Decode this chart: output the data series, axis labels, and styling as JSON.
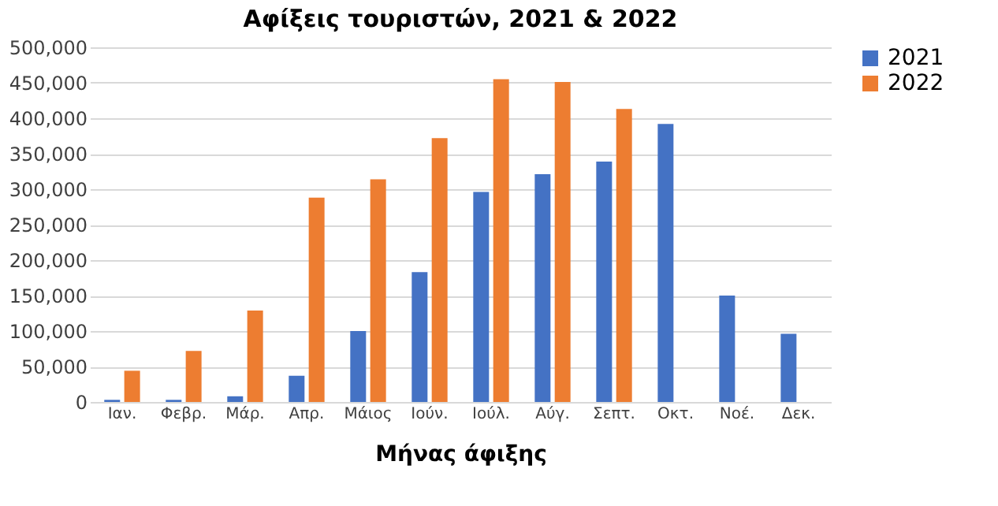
{
  "chart_data": {
    "type": "bar",
    "title": "Αφίξεις τουριστών, 2021 & 2022",
    "xlabel": "Μήνας άφιξης",
    "categories": [
      "Ιαν.",
      "Φεβρ.",
      "Μάρ.",
      "Απρ.",
      "Μάιος",
      "Ιούν.",
      "Ιούλ.",
      "Αύγ.",
      "Σεπτ.",
      "Οκτ.",
      "Νοέ.",
      "Δεκ."
    ],
    "series": [
      {
        "name": "2021",
        "color": "#4472c4",
        "values": [
          3000,
          3000,
          8000,
          37000,
          100000,
          183000,
          296000,
          321000,
          339000,
          392000,
          150000,
          96000
        ]
      },
      {
        "name": "2022",
        "color": "#ed7d31",
        "values": [
          44000,
          72000,
          129000,
          288000,
          314000,
          372000,
          455000,
          451000,
          413000,
          null,
          null,
          null
        ]
      }
    ],
    "ylim": [
      0,
      500000
    ],
    "yticks": [
      0,
      {
        "value": 50000,
        "label": "50,000"
      },
      {
        "value": 100000,
        "label": "100,000"
      },
      {
        "value": 150000,
        "label": "150,000"
      },
      {
        "value": 200000,
        "label": "200,000"
      },
      {
        "value": 250000,
        "label": "250,000"
      },
      {
        "value": 300000,
        "label": "300,000"
      },
      {
        "value": 350000,
        "label": "350,000"
      },
      {
        "value": 400000,
        "label": "400,000"
      },
      {
        "value": 450000,
        "label": "450,000"
      },
      {
        "value": 500000,
        "label": "500,000"
      }
    ],
    "grid": "y",
    "legend": "right"
  }
}
